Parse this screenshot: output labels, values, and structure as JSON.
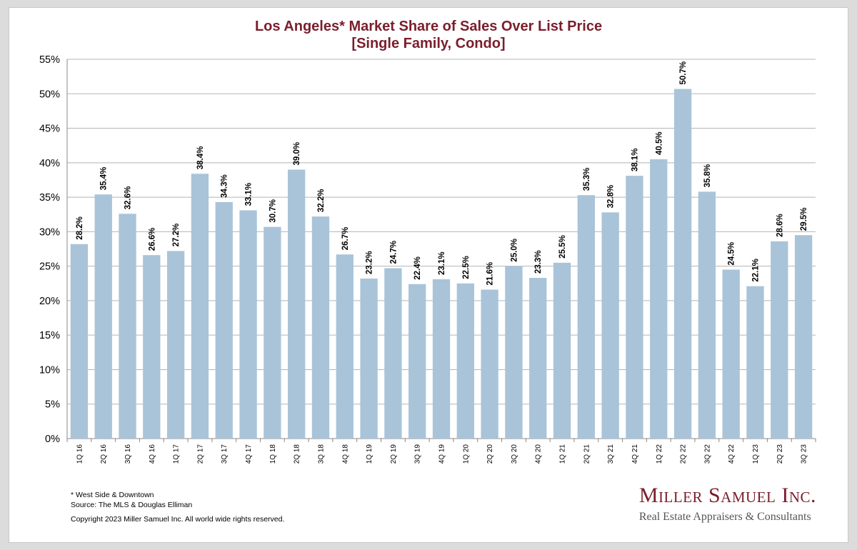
{
  "title_line1": "Los Angeles* Market Share of Sales Over List Price",
  "title_line2": "[Single Family, Condo]",
  "footnote": "* West Side & Downtown",
  "source": "Source: The MLS & Douglas Elliman",
  "copyright": "Copyright 2023 Miller Samuel Inc.  All world wide rights reserved.",
  "brand_name": "Miller Samuel Inc.",
  "brand_tagline": "Real Estate Appraisers & Consultants",
  "colors": {
    "bar": "#a9c4d9",
    "title": "#7a1e2c",
    "grid": "#b5b5b5"
  },
  "chart_data": {
    "type": "bar",
    "categories": [
      "1Q 16",
      "2Q 16",
      "3Q 16",
      "4Q 16",
      "1Q 17",
      "2Q 17",
      "3Q 17",
      "4Q 17",
      "1Q 18",
      "2Q 18",
      "3Q 18",
      "4Q 18",
      "1Q 19",
      "2Q 19",
      "3Q 19",
      "4Q 19",
      "1Q 20",
      "2Q 20",
      "3Q 20",
      "4Q 20",
      "1Q 21",
      "2Q 21",
      "3Q 21",
      "4Q 21",
      "1Q 22",
      "2Q 22",
      "3Q 22",
      "4Q 22",
      "1Q 23",
      "2Q 23",
      "3Q 23"
    ],
    "values": [
      28.2,
      35.4,
      32.6,
      26.6,
      27.2,
      38.4,
      34.3,
      33.1,
      30.7,
      39.0,
      32.2,
      26.7,
      23.2,
      24.7,
      22.4,
      23.1,
      22.5,
      21.6,
      25.0,
      23.3,
      25.5,
      35.3,
      32.8,
      38.1,
      40.5,
      50.7,
      35.8,
      24.5,
      22.1,
      28.6,
      29.5
    ],
    "data_labels": [
      "28.2%",
      "35.4%",
      "32.6%",
      "26.6%",
      "27.2%",
      "38.4%",
      "34.3%",
      "33.1%",
      "30.7%",
      "39.0%",
      "32.2%",
      "26.7%",
      "23.2%",
      "24.7%",
      "22.4%",
      "23.1%",
      "22.5%",
      "21.6%",
      "25.0%",
      "23.3%",
      "25.5%",
      "35.3%",
      "32.8%",
      "38.1%",
      "40.5%",
      "50.7%",
      "35.8%",
      "24.5%",
      "22.1%",
      "28.6%",
      "29.5%"
    ],
    "yticks": [
      "0%",
      "5%",
      "10%",
      "15%",
      "20%",
      "25%",
      "30%",
      "35%",
      "40%",
      "45%",
      "50%",
      "55%"
    ],
    "ylim": [
      0,
      55
    ],
    "ystep": 5,
    "grid": true
  }
}
